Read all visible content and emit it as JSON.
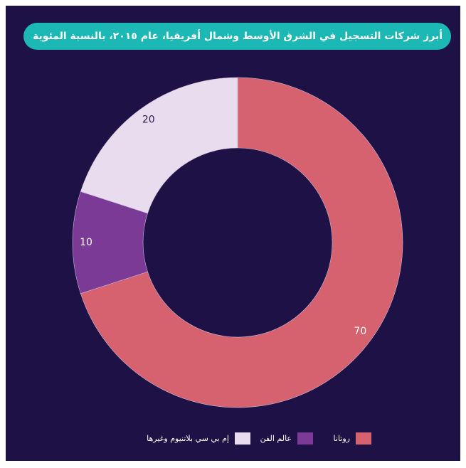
{
  "chart_data": {
    "type": "donut",
    "title": "أبرز شركات التسجيل في الشرق الأوسط وشمال أفريقيا، عام ٢٠١٥، بالنسبة المئوية",
    "categories": [
      "روتانا",
      "عالم الفن",
      "إم بي سي بلاتنيوم وغيرها"
    ],
    "values": [
      70,
      10,
      20
    ],
    "colors": [
      "#d6616f",
      "#7b3a96",
      "#e8dcee"
    ],
    "legend": "bottom"
  }
}
